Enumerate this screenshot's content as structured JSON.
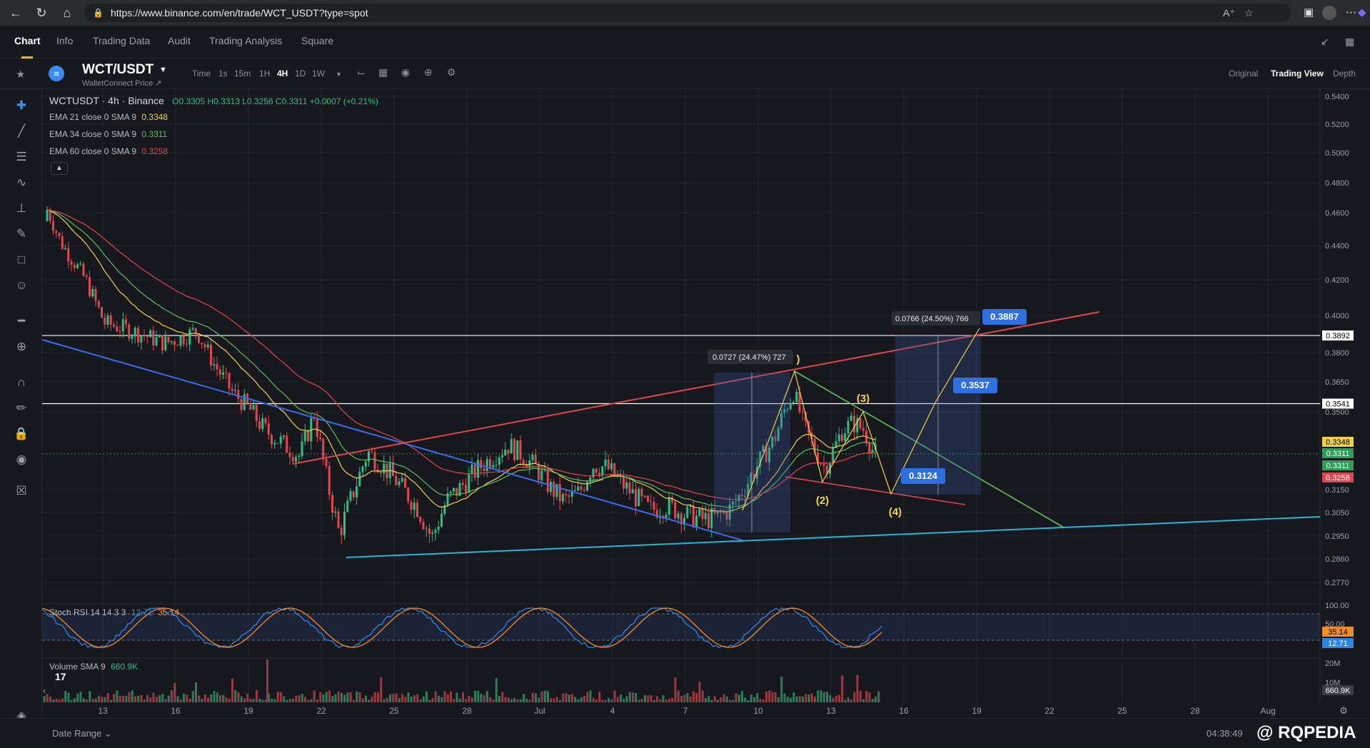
{
  "browser": {
    "url": "https://www.binance.com/en/trade/WCT_USDT?type=spot"
  },
  "tabs": [
    {
      "label": "Chart",
      "active": true
    },
    {
      "label": "Info"
    },
    {
      "label": "Trading Data"
    },
    {
      "label": "Audit"
    },
    {
      "label": "Trading Analysis"
    },
    {
      "label": "Square"
    }
  ],
  "pair": {
    "name": "WCT/USDT",
    "subtitle": "WalletConnect Price ↗"
  },
  "timeframes": [
    "Time",
    "1s",
    "15m",
    "1H",
    "4H",
    "1D",
    "1W"
  ],
  "active_timeframe": "4H",
  "views": [
    "Original",
    "Trading View",
    "Depth"
  ],
  "active_view": "Trading View",
  "legend": {
    "symbol": "WCTUSDT · 4h · Binance",
    "ohlc": "O0.3305  H0.3313  L0.3256  C0.3311  +0.0007 (+0.21%)",
    "ema21": {
      "label": "EMA 21 close 0 SMA 9",
      "value": "0.3348",
      "color": "#f0d24a"
    },
    "ema34": {
      "label": "EMA 34 close 0 SMA 9",
      "value": "0.3311",
      "color": "#5fbf5f"
    },
    "ema60": {
      "label": "EMA 60 close 0 SMA 9",
      "value": "0.3258",
      "color": "#e0464e"
    },
    "stoch": {
      "label": "Stoch RSI 14 14 3 3",
      "k": "12.71",
      "d": "35.14"
    },
    "volume": {
      "label": "Volume SMA 9",
      "value": "660.9K"
    }
  },
  "annotations": {
    "measure1": "0.0727 (24.47%) 727",
    "measure2": "0.0766 (24.50%) 766",
    "target1": "0.3887",
    "target2": "0.3537",
    "target3": "0.3124",
    "wave2": "(2)",
    "wave3": "(3)",
    "wave4": "(4)",
    "wave1": ")"
  },
  "price_axis": {
    "ticks": [
      "0.5400",
      "0.5200",
      "0.5000",
      "0.4800",
      "0.4600",
      "0.4400",
      "0.4200",
      "0.4000",
      "0.3800",
      "0.3650",
      "0.3500",
      "0.3150",
      "0.3050",
      "0.2950",
      "0.2860",
      "0.2770"
    ],
    "labels": [
      {
        "text": "0.3892",
        "bg": "#ffffff",
        "fg": "#000000"
      },
      {
        "text": "0.3541",
        "bg": "#ffffff",
        "fg": "#000000"
      },
      {
        "text": "0.3348",
        "bg": "#f0d24a",
        "fg": "#000000"
      },
      {
        "text": "0.3311",
        "bg": "#2e9d5a",
        "fg": "#ffffff"
      },
      {
        "text": "0.3311",
        "bg": "#2e9d5a",
        "fg": "#ffffff"
      },
      {
        "text": "0.3258",
        "bg": "#e0464e",
        "fg": "#ffffff"
      }
    ]
  },
  "stoch_axis": {
    "ticks": [
      "100.00",
      "50.00"
    ],
    "labels": [
      {
        "text": "35.14",
        "bg": "#f28c28",
        "fg": "#000000"
      },
      {
        "text": "12.71",
        "bg": "#2f86e0",
        "fg": "#ffffff"
      }
    ]
  },
  "volume_axis": {
    "ticks": [
      "20M",
      "10M"
    ],
    "label": {
      "text": "660.9K",
      "bg": "#3a3d44",
      "fg": "#ffffff"
    }
  },
  "time_axis": [
    "13",
    "16",
    "19",
    "22",
    "25",
    "28",
    "Jul",
    "4",
    "7",
    "10",
    "13",
    "16",
    "19",
    "22",
    "25",
    "28",
    "Aug"
  ],
  "bottom": {
    "date_range": "Date Range",
    "clock": "04:38:49",
    "watermark": "@ RQPEDIA"
  }
}
